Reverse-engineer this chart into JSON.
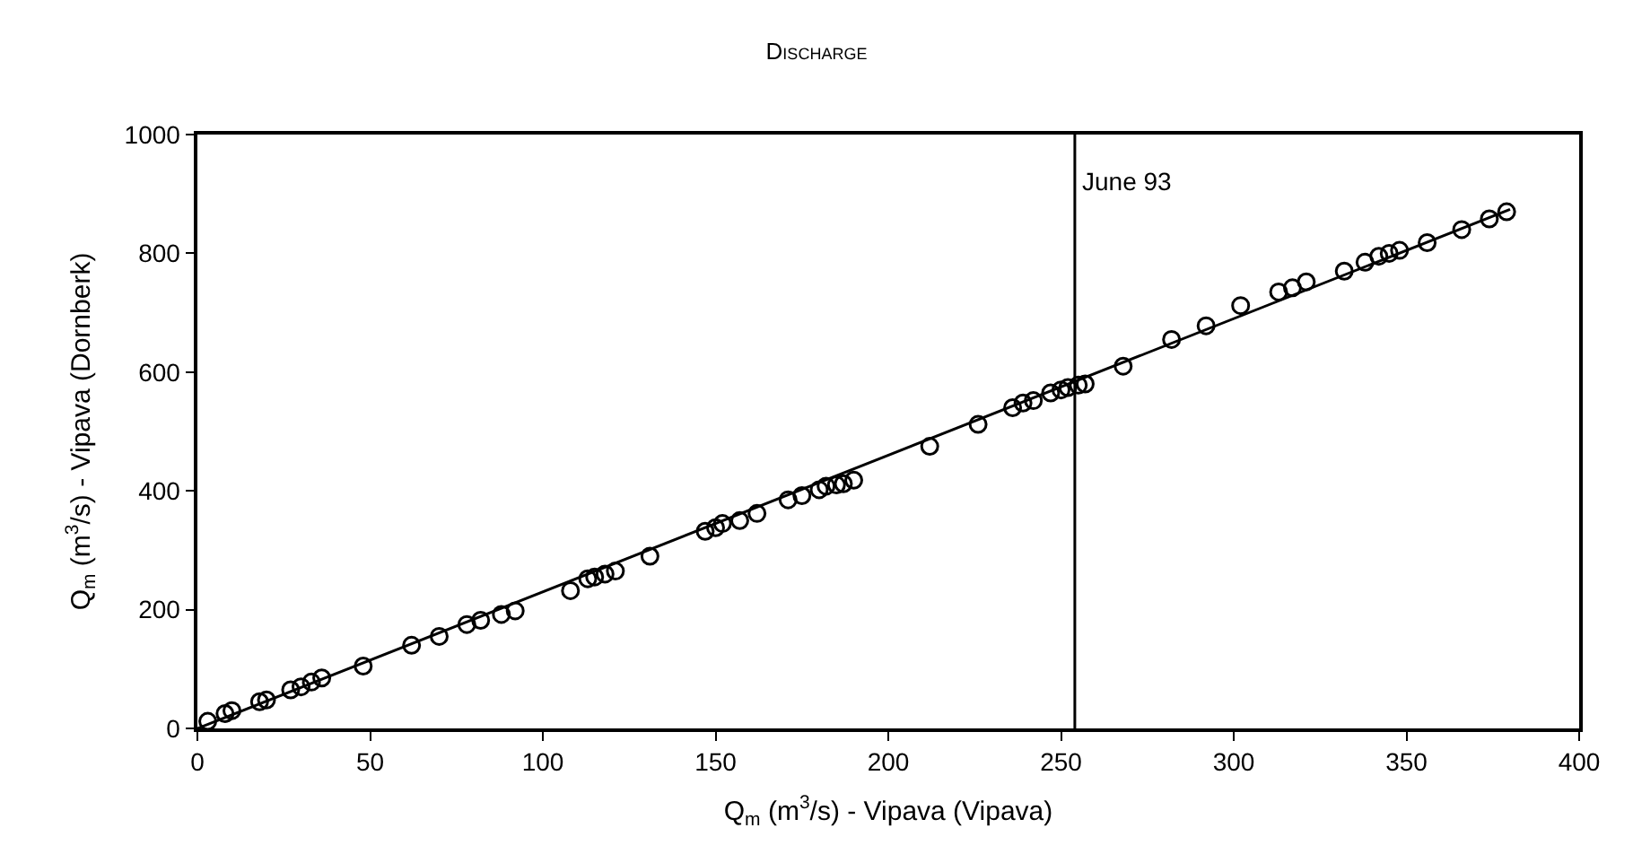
{
  "chart_data": {
    "type": "scatter",
    "title": "Discharge",
    "xlabel": "Q$_{m}$ (m$^{3}$/s) - Vipava (Vipava)",
    "ylabel": "Q$_{m}$ (m$^{3}$/s) - Vipava (Dornberk)",
    "xlim": [
      0,
      400
    ],
    "xticks": [
      0,
      50,
      100,
      150,
      200,
      250,
      300,
      350,
      400
    ],
    "ylim": [
      0,
      1000
    ],
    "yticks": [
      0,
      200,
      400,
      600,
      800,
      1000
    ],
    "series": [
      {
        "marker": "circle",
        "color": "#000000",
        "x": [
          3,
          8,
          10,
          18,
          20,
          27,
          30,
          33,
          36,
          48,
          62,
          70,
          78,
          82,
          88,
          92,
          108,
          113,
          115,
          118,
          121,
          131,
          147,
          150,
          152,
          157,
          162,
          171,
          175,
          180,
          182,
          185,
          187,
          190,
          212,
          226,
          236,
          239,
          242,
          247,
          250,
          252,
          255,
          257,
          268,
          282,
          292,
          302,
          313,
          317,
          321,
          332,
          338,
          342,
          345,
          348,
          356,
          366,
          374,
          379
        ],
        "values": [
          12,
          25,
          30,
          45,
          48,
          65,
          70,
          78,
          85,
          105,
          140,
          155,
          175,
          182,
          192,
          198,
          232,
          252,
          255,
          260,
          265,
          290,
          332,
          338,
          345,
          350,
          362,
          385,
          392,
          402,
          408,
          410,
          412,
          418,
          475,
          512,
          540,
          548,
          552,
          565,
          570,
          574,
          578,
          580,
          610,
          655,
          678,
          712,
          735,
          742,
          752,
          770,
          785,
          795,
          800,
          805,
          818,
          840,
          858,
          870
        ]
      },
      {
        "type": "line",
        "marker": "none",
        "color": "#000000",
        "x": [
          0,
          380
        ],
        "values": [
          0,
          874
        ]
      }
    ],
    "ref_lines": [
      {
        "axis": "x",
        "value": 254,
        "label": "June 93",
        "color": "#000000"
      }
    ]
  }
}
